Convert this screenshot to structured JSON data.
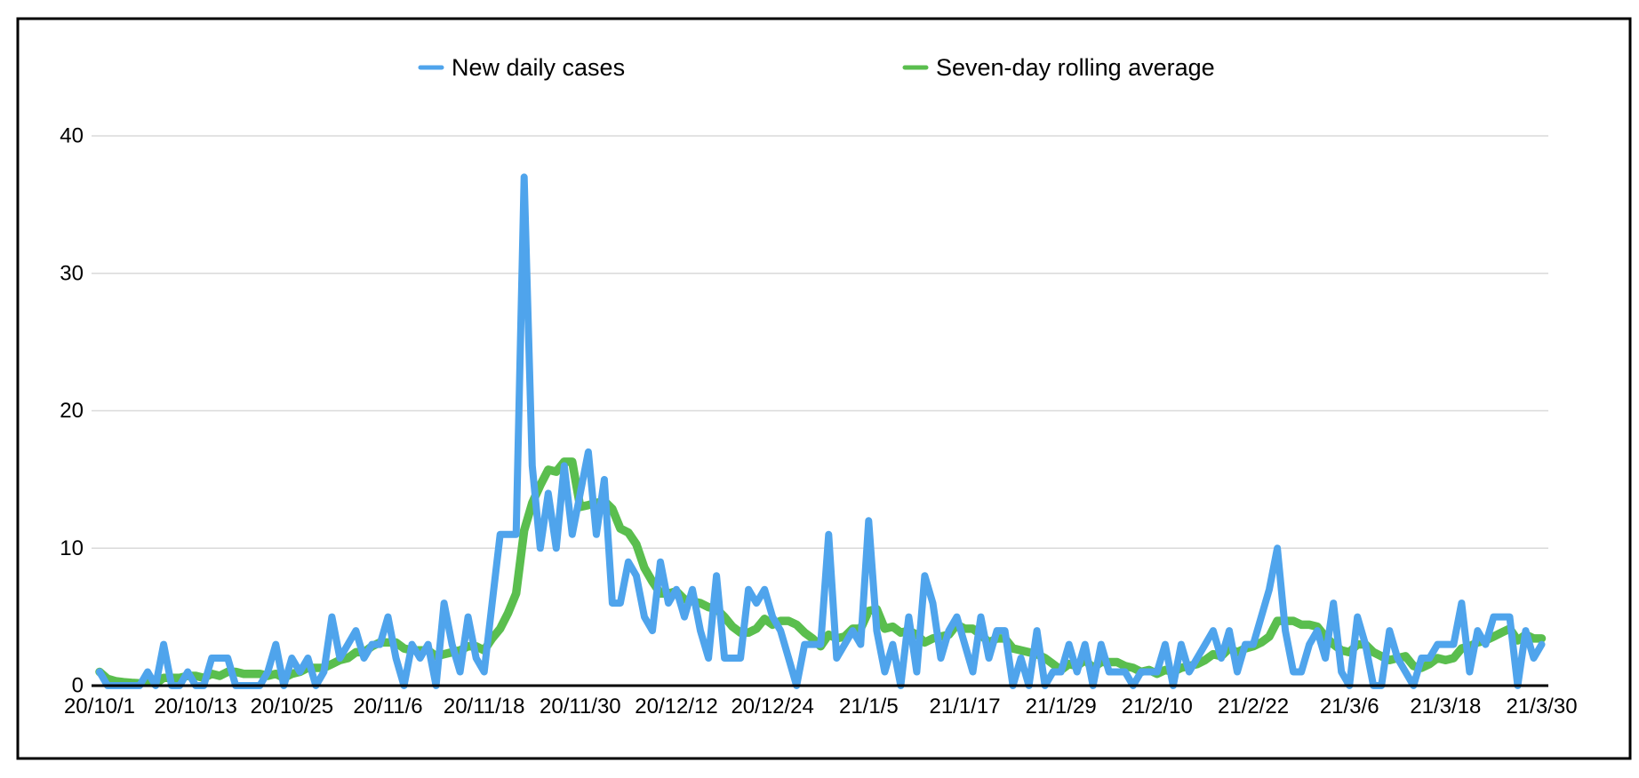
{
  "frame": {
    "background_color": "#ffffff",
    "border_color": "#000000"
  },
  "legend": {
    "items": [
      {
        "label": "New daily cases",
        "color": "#4fa4ec"
      },
      {
        "label": "Seven-day rolling average",
        "color": "#5abe4e"
      }
    ]
  },
  "axes": {
    "y_ticks": [
      "0",
      "10",
      "20",
      "30",
      "40"
    ],
    "x_tick_labels": [
      "20/10/1",
      "20/10/13",
      "20/10/25",
      "20/11/6",
      "20/11/18",
      "20/11/30",
      "20/12/12",
      "20/12/24",
      "21/1/5",
      "21/1/17",
      "21/1/29",
      "21/2/10",
      "21/2/22",
      "21/3/6",
      "21/3/18",
      "21/3/30"
    ],
    "grid_color": "#dadada",
    "axis_color": "#000000"
  },
  "chart_data": {
    "type": "line",
    "title": "",
    "xlabel": "",
    "ylabel": "",
    "ylim": [
      0,
      40
    ],
    "y_ticks": [
      0,
      10,
      20,
      30,
      40
    ],
    "grid": "horizontal",
    "legend_position": "top",
    "x_tick_every": 12,
    "x_tick_labels": [
      "20/10/1",
      "20/10/13",
      "20/10/25",
      "20/11/6",
      "20/11/18",
      "20/11/30",
      "20/12/12",
      "20/12/24",
      "21/1/5",
      "21/1/17",
      "21/1/29",
      "21/2/10",
      "21/2/22",
      "21/3/6",
      "21/3/18",
      "21/3/30"
    ],
    "x": [
      "20/10/1",
      "20/10/2",
      "20/10/3",
      "20/10/4",
      "20/10/5",
      "20/10/6",
      "20/10/7",
      "20/10/8",
      "20/10/9",
      "20/10/10",
      "20/10/11",
      "20/10/12",
      "20/10/13",
      "20/10/14",
      "20/10/15",
      "20/10/16",
      "20/10/17",
      "20/10/18",
      "20/10/19",
      "20/10/20",
      "20/10/21",
      "20/10/22",
      "20/10/23",
      "20/10/24",
      "20/10/25",
      "20/10/26",
      "20/10/27",
      "20/10/28",
      "20/10/29",
      "20/10/30",
      "20/10/31",
      "20/11/1",
      "20/11/2",
      "20/11/3",
      "20/11/4",
      "20/11/5",
      "20/11/6",
      "20/11/7",
      "20/11/8",
      "20/11/9",
      "20/11/10",
      "20/11/11",
      "20/11/12",
      "20/11/13",
      "20/11/14",
      "20/11/15",
      "20/11/16",
      "20/11/17",
      "20/11/18",
      "20/11/19",
      "20/11/20",
      "20/11/21",
      "20/11/22",
      "20/11/23",
      "20/11/24",
      "20/11/25",
      "20/11/26",
      "20/11/27",
      "20/11/28",
      "20/11/29",
      "20/11/30",
      "20/12/1",
      "20/12/2",
      "20/12/3",
      "20/12/4",
      "20/12/5",
      "20/12/6",
      "20/12/7",
      "20/12/8",
      "20/12/9",
      "20/12/10",
      "20/12/11",
      "20/12/12",
      "20/12/13",
      "20/12/14",
      "20/12/15",
      "20/12/16",
      "20/12/17",
      "20/12/18",
      "20/12/19",
      "20/12/20",
      "20/12/21",
      "20/12/22",
      "20/12/23",
      "20/12/24",
      "20/12/25",
      "20/12/26",
      "20/12/27",
      "20/12/28",
      "20/12/29",
      "20/12/30",
      "20/12/31",
      "21/1/1",
      "21/1/2",
      "21/1/3",
      "21/1/4",
      "21/1/5",
      "21/1/6",
      "21/1/7",
      "21/1/8",
      "21/1/9",
      "21/1/10",
      "21/1/11",
      "21/1/12",
      "21/1/13",
      "21/1/14",
      "21/1/15",
      "21/1/16",
      "21/1/17",
      "21/1/18",
      "21/1/19",
      "21/1/20",
      "21/1/21",
      "21/1/22",
      "21/1/23",
      "21/1/24",
      "21/1/25",
      "21/1/26",
      "21/1/27",
      "21/1/28",
      "21/1/29",
      "21/1/30",
      "21/1/31",
      "21/2/1",
      "21/2/2",
      "21/2/3",
      "21/2/4",
      "21/2/5",
      "21/2/6",
      "21/2/7",
      "21/2/8",
      "21/2/9",
      "21/2/10",
      "21/2/11",
      "21/2/12",
      "21/2/13",
      "21/2/14",
      "21/2/15",
      "21/2/16",
      "21/2/17",
      "21/2/18",
      "21/2/19",
      "21/2/20",
      "21/2/21",
      "21/2/22",
      "21/2/23",
      "21/2/24",
      "21/2/25",
      "21/2/26",
      "21/2/27",
      "21/2/28",
      "21/3/1",
      "21/3/2",
      "21/3/3",
      "21/3/4",
      "21/3/5",
      "21/3/6",
      "21/3/7",
      "21/3/8",
      "21/3/9",
      "21/3/10",
      "21/3/11",
      "21/3/12",
      "21/3/13",
      "21/3/14",
      "21/3/15",
      "21/3/16",
      "21/3/17",
      "21/3/18",
      "21/3/19",
      "21/3/20",
      "21/3/21",
      "21/3/22",
      "21/3/23",
      "21/3/24",
      "21/3/25",
      "21/3/26",
      "21/3/27",
      "21/3/28",
      "21/3/29",
      "21/3/30"
    ],
    "series": [
      {
        "name": "New daily cases",
        "color": "#4fa4ec",
        "values": [
          1,
          0,
          0,
          0,
          0,
          0,
          1,
          0,
          3,
          0,
          0,
          1,
          0,
          0,
          2,
          2,
          2,
          0,
          0,
          0,
          0,
          1,
          3,
          0,
          2,
          1,
          2,
          0,
          1,
          5,
          2,
          3,
          4,
          2,
          3,
          3,
          5,
          2,
          0,
          3,
          2,
          3,
          0,
          6,
          3,
          1,
          5,
          2,
          1,
          6,
          11,
          11,
          11,
          37,
          16,
          10,
          14,
          10,
          16,
          11,
          14,
          17,
          11,
          15,
          6,
          6,
          9,
          8,
          5,
          4,
          9,
          6,
          7,
          5,
          7,
          4,
          2,
          8,
          2,
          2,
          2,
          7,
          6,
          7,
          5,
          4,
          2,
          0,
          3,
          3,
          3,
          11,
          2,
          3,
          4,
          3,
          12,
          4,
          1,
          3,
          0,
          5,
          1,
          8,
          6,
          2,
          4,
          5,
          3,
          1,
          5,
          2,
          4,
          4,
          0,
          2,
          0,
          4,
          0,
          1,
          1,
          3,
          1,
          3,
          0,
          3,
          1,
          1,
          1,
          0,
          1,
          1,
          1,
          3,
          0,
          3,
          1,
          2,
          3,
          4,
          2,
          4,
          1,
          3,
          3,
          5,
          7,
          10,
          4,
          1,
          1,
          3,
          4,
          2,
          6,
          1,
          0,
          5,
          3,
          0,
          0,
          4,
          2,
          1,
          0,
          2,
          2,
          3,
          3,
          3,
          6,
          1,
          4,
          3,
          5,
          5,
          5,
          0,
          4,
          2,
          3
        ]
      },
      {
        "name": "Seven-day rolling average",
        "color": "#5abe4e",
        "derived_from": "trailing 7-day mean of New daily cases"
      }
    ]
  }
}
